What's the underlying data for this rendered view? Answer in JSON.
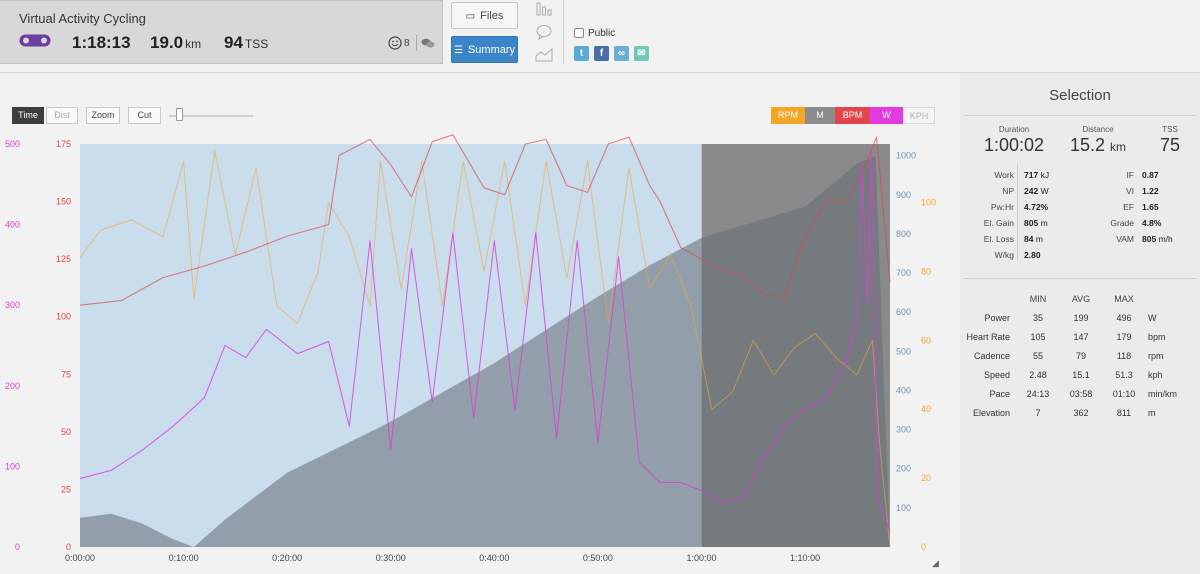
{
  "activity": {
    "title": "Virtual Activity Cycling",
    "duration": "1:18:13",
    "distance": "19.0",
    "distance_unit": "km",
    "tss": "94",
    "tss_unit": "TSS",
    "kudos_count": "8"
  },
  "tabs": {
    "files": "Files",
    "summary": "Summary"
  },
  "share": {
    "public_label": "Public",
    "icons": [
      "twitter-icon",
      "facebook-icon",
      "link-icon",
      "email-icon"
    ]
  },
  "controls": {
    "time": "Time",
    "dist": "Dist",
    "zoom": "Zoom",
    "cut": "Cut"
  },
  "legend": [
    {
      "key": "rpm",
      "label": "RPM",
      "color": "#f5a623"
    },
    {
      "key": "m",
      "label": "M",
      "color": "#8c8c8c"
    },
    {
      "key": "bpm",
      "label": "BPM",
      "color": "#e0464b"
    },
    {
      "key": "w",
      "label": "W",
      "color": "#e23be0"
    },
    {
      "key": "kph",
      "label": "KPH",
      "color": "#f4f4f4"
    }
  ],
  "chart_data": {
    "type": "line",
    "x_ticks": [
      "0:00:00",
      "0:10:00",
      "0:20:00",
      "0:30:00",
      "0:40:00",
      "0:50:00",
      "1:00:00",
      "1:10:00"
    ],
    "x_range_minutes": [
      0,
      78.2
    ],
    "selection_minutes": [
      0,
      60.03
    ],
    "axes": {
      "watts": {
        "ticks": [
          "0",
          "100",
          "200",
          "300",
          "400",
          "500"
        ],
        "range": [
          0,
          500
        ],
        "color": "#e23be0"
      },
      "bpm": {
        "ticks": [
          "0",
          "25",
          "50",
          "75",
          "100",
          "125",
          "150",
          "175"
        ],
        "range": [
          0,
          175
        ],
        "color": "#e0464b"
      },
      "elevation": {
        "ticks": [
          "100",
          "200",
          "300",
          "400",
          "500",
          "600",
          "700",
          "800",
          "900",
          "1000"
        ],
        "range": [
          0,
          1030
        ],
        "color": "#6f95ba"
      },
      "cadence": {
        "ticks": [
          "0",
          "20",
          "40",
          "60",
          "80",
          "100"
        ],
        "range": [
          0,
          117
        ],
        "color": "#f5a623"
      }
    },
    "series": [
      {
        "name": "M",
        "axis": "elevation",
        "color": "#8c8c8c",
        "points": [
          [
            0,
            75
          ],
          [
            3,
            85
          ],
          [
            6,
            60
          ],
          [
            9,
            20
          ],
          [
            11,
            0
          ],
          [
            14,
            70
          ],
          [
            20,
            190
          ],
          [
            30,
            320
          ],
          [
            40,
            470
          ],
          [
            50,
            640
          ],
          [
            55,
            720
          ],
          [
            60,
            790
          ],
          [
            70,
            870
          ],
          [
            75,
            980
          ],
          [
            76.8,
            1000
          ],
          [
            78.2,
            0
          ]
        ]
      },
      {
        "name": "BPM",
        "axis": "bpm",
        "color": "#e0464b",
        "points": [
          [
            0,
            105
          ],
          [
            4,
            107
          ],
          [
            8,
            117
          ],
          [
            12,
            122
          ],
          [
            16,
            128
          ],
          [
            20,
            135
          ],
          [
            24,
            140
          ],
          [
            25,
            170
          ],
          [
            28,
            177
          ],
          [
            30,
            166
          ],
          [
            32,
            152
          ],
          [
            34,
            176
          ],
          [
            36,
            179
          ],
          [
            39,
            156
          ],
          [
            41,
            153
          ],
          [
            43,
            175
          ],
          [
            45,
            177
          ],
          [
            47,
            157
          ],
          [
            49,
            154
          ],
          [
            51,
            175
          ],
          [
            53,
            178
          ],
          [
            55,
            157
          ],
          [
            56,
            150
          ],
          [
            58,
            130
          ],
          [
            60,
            125
          ],
          [
            62,
            120
          ],
          [
            64,
            118
          ],
          [
            66,
            110
          ],
          [
            68,
            108
          ],
          [
            70,
            135
          ],
          [
            72,
            150
          ],
          [
            74,
            150
          ],
          [
            75,
            158
          ],
          [
            76.2,
            170
          ],
          [
            76.9,
            178
          ],
          [
            78.2,
            115
          ]
        ]
      },
      {
        "name": "RPM",
        "axis": "cadence",
        "color": "#f5a623",
        "points": [
          [
            0,
            84
          ],
          [
            2,
            92
          ],
          [
            5,
            95
          ],
          [
            8,
            90
          ],
          [
            10,
            112
          ],
          [
            11,
            72
          ],
          [
            13,
            115
          ],
          [
            15,
            85
          ],
          [
            17,
            110
          ],
          [
            19,
            70
          ],
          [
            21,
            65
          ],
          [
            23,
            80
          ],
          [
            24,
            100
          ],
          [
            26,
            90
          ],
          [
            28,
            70
          ],
          [
            29,
            112
          ],
          [
            31,
            75
          ],
          [
            33,
            112
          ],
          [
            35,
            70
          ],
          [
            37,
            112
          ],
          [
            39,
            80
          ],
          [
            41,
            112
          ],
          [
            43,
            70
          ],
          [
            45,
            112
          ],
          [
            47,
            78
          ],
          [
            49,
            112
          ],
          [
            51,
            65
          ],
          [
            53,
            110
          ],
          [
            55,
            75
          ],
          [
            57,
            85
          ],
          [
            59,
            70
          ],
          [
            61,
            40
          ],
          [
            63,
            45
          ],
          [
            65,
            60
          ],
          [
            67,
            50
          ],
          [
            69,
            58
          ],
          [
            71,
            62
          ],
          [
            73,
            55
          ],
          [
            75,
            50
          ],
          [
            76.5,
            60
          ],
          [
            77.2,
            30
          ],
          [
            78.2,
            0
          ]
        ]
      },
      {
        "name": "W",
        "axis": "watts",
        "color": "#e23be0",
        "points": [
          [
            0,
            85
          ],
          [
            3,
            95
          ],
          [
            6,
            120
          ],
          [
            9,
            150
          ],
          [
            12,
            185
          ],
          [
            14,
            250
          ],
          [
            16,
            235
          ],
          [
            18,
            270
          ],
          [
            21,
            240
          ],
          [
            24,
            255
          ],
          [
            26,
            150
          ],
          [
            28,
            380
          ],
          [
            30,
            120
          ],
          [
            32,
            370
          ],
          [
            34,
            180
          ],
          [
            36,
            390
          ],
          [
            38,
            160
          ],
          [
            40,
            380
          ],
          [
            42,
            170
          ],
          [
            44,
            390
          ],
          [
            46,
            135
          ],
          [
            48,
            380
          ],
          [
            50,
            130
          ],
          [
            52,
            360
          ],
          [
            54,
            105
          ],
          [
            56,
            80
          ],
          [
            58,
            80
          ],
          [
            60,
            70
          ],
          [
            62,
            55
          ],
          [
            64,
            60
          ],
          [
            66,
            110
          ],
          [
            68,
            150
          ],
          [
            70,
            170
          ],
          [
            72,
            185
          ],
          [
            74,
            230
          ],
          [
            75,
            280
          ],
          [
            75.5,
            475
          ],
          [
            76,
            300
          ],
          [
            76.4,
            490
          ],
          [
            77,
            60
          ],
          [
            78.2,
            20
          ]
        ]
      }
    ]
  },
  "selection": {
    "title": "Selection",
    "duration_label": "Duration",
    "duration": "1:00:02",
    "distance_label": "Distance",
    "distance": "15.2",
    "distance_unit": "km",
    "tss_label": "TSS",
    "tss": "75",
    "left_metrics": [
      {
        "label": "Work",
        "value": "717",
        "unit": "kJ"
      },
      {
        "label": "NP",
        "value": "242",
        "unit": "W"
      },
      {
        "label": "Pw:Hr",
        "value": "4.72%",
        "unit": ""
      },
      {
        "label": "El. Gain",
        "value": "805",
        "unit": "m"
      },
      {
        "label": "El. Loss",
        "value": "84",
        "unit": "m"
      },
      {
        "label": "W/kg",
        "value": "2.80",
        "unit": ""
      }
    ],
    "right_metrics": [
      {
        "label": "IF",
        "value": "0.87",
        "unit": ""
      },
      {
        "label": "VI",
        "value": "1.22",
        "unit": ""
      },
      {
        "label": "EF",
        "value": "1.65",
        "unit": ""
      },
      {
        "label": "Grade",
        "value": "4.8%",
        "unit": ""
      },
      {
        "label": "VAM",
        "value": "805",
        "unit": "m/h"
      }
    ],
    "table": {
      "headers": [
        "MIN",
        "AVG",
        "MAX"
      ],
      "rows": [
        {
          "label": "Power",
          "min": "35",
          "avg": "199",
          "max": "496",
          "unit": "W"
        },
        {
          "label": "Heart Rate",
          "min": "105",
          "avg": "147",
          "max": "179",
          "unit": "bpm"
        },
        {
          "label": "Cadence",
          "min": "55",
          "avg": "79",
          "max": "118",
          "unit": "rpm"
        },
        {
          "label": "Speed",
          "min": "2.48",
          "avg": "15.1",
          "max": "51.3",
          "unit": "kph"
        },
        {
          "label": "Pace",
          "min": "24:13",
          "avg": "03:58",
          "max": "01:10",
          "unit": "min/km"
        },
        {
          "label": "Elevation",
          "min": "7",
          "avg": "362",
          "max": "811",
          "unit": "m"
        }
      ]
    }
  }
}
